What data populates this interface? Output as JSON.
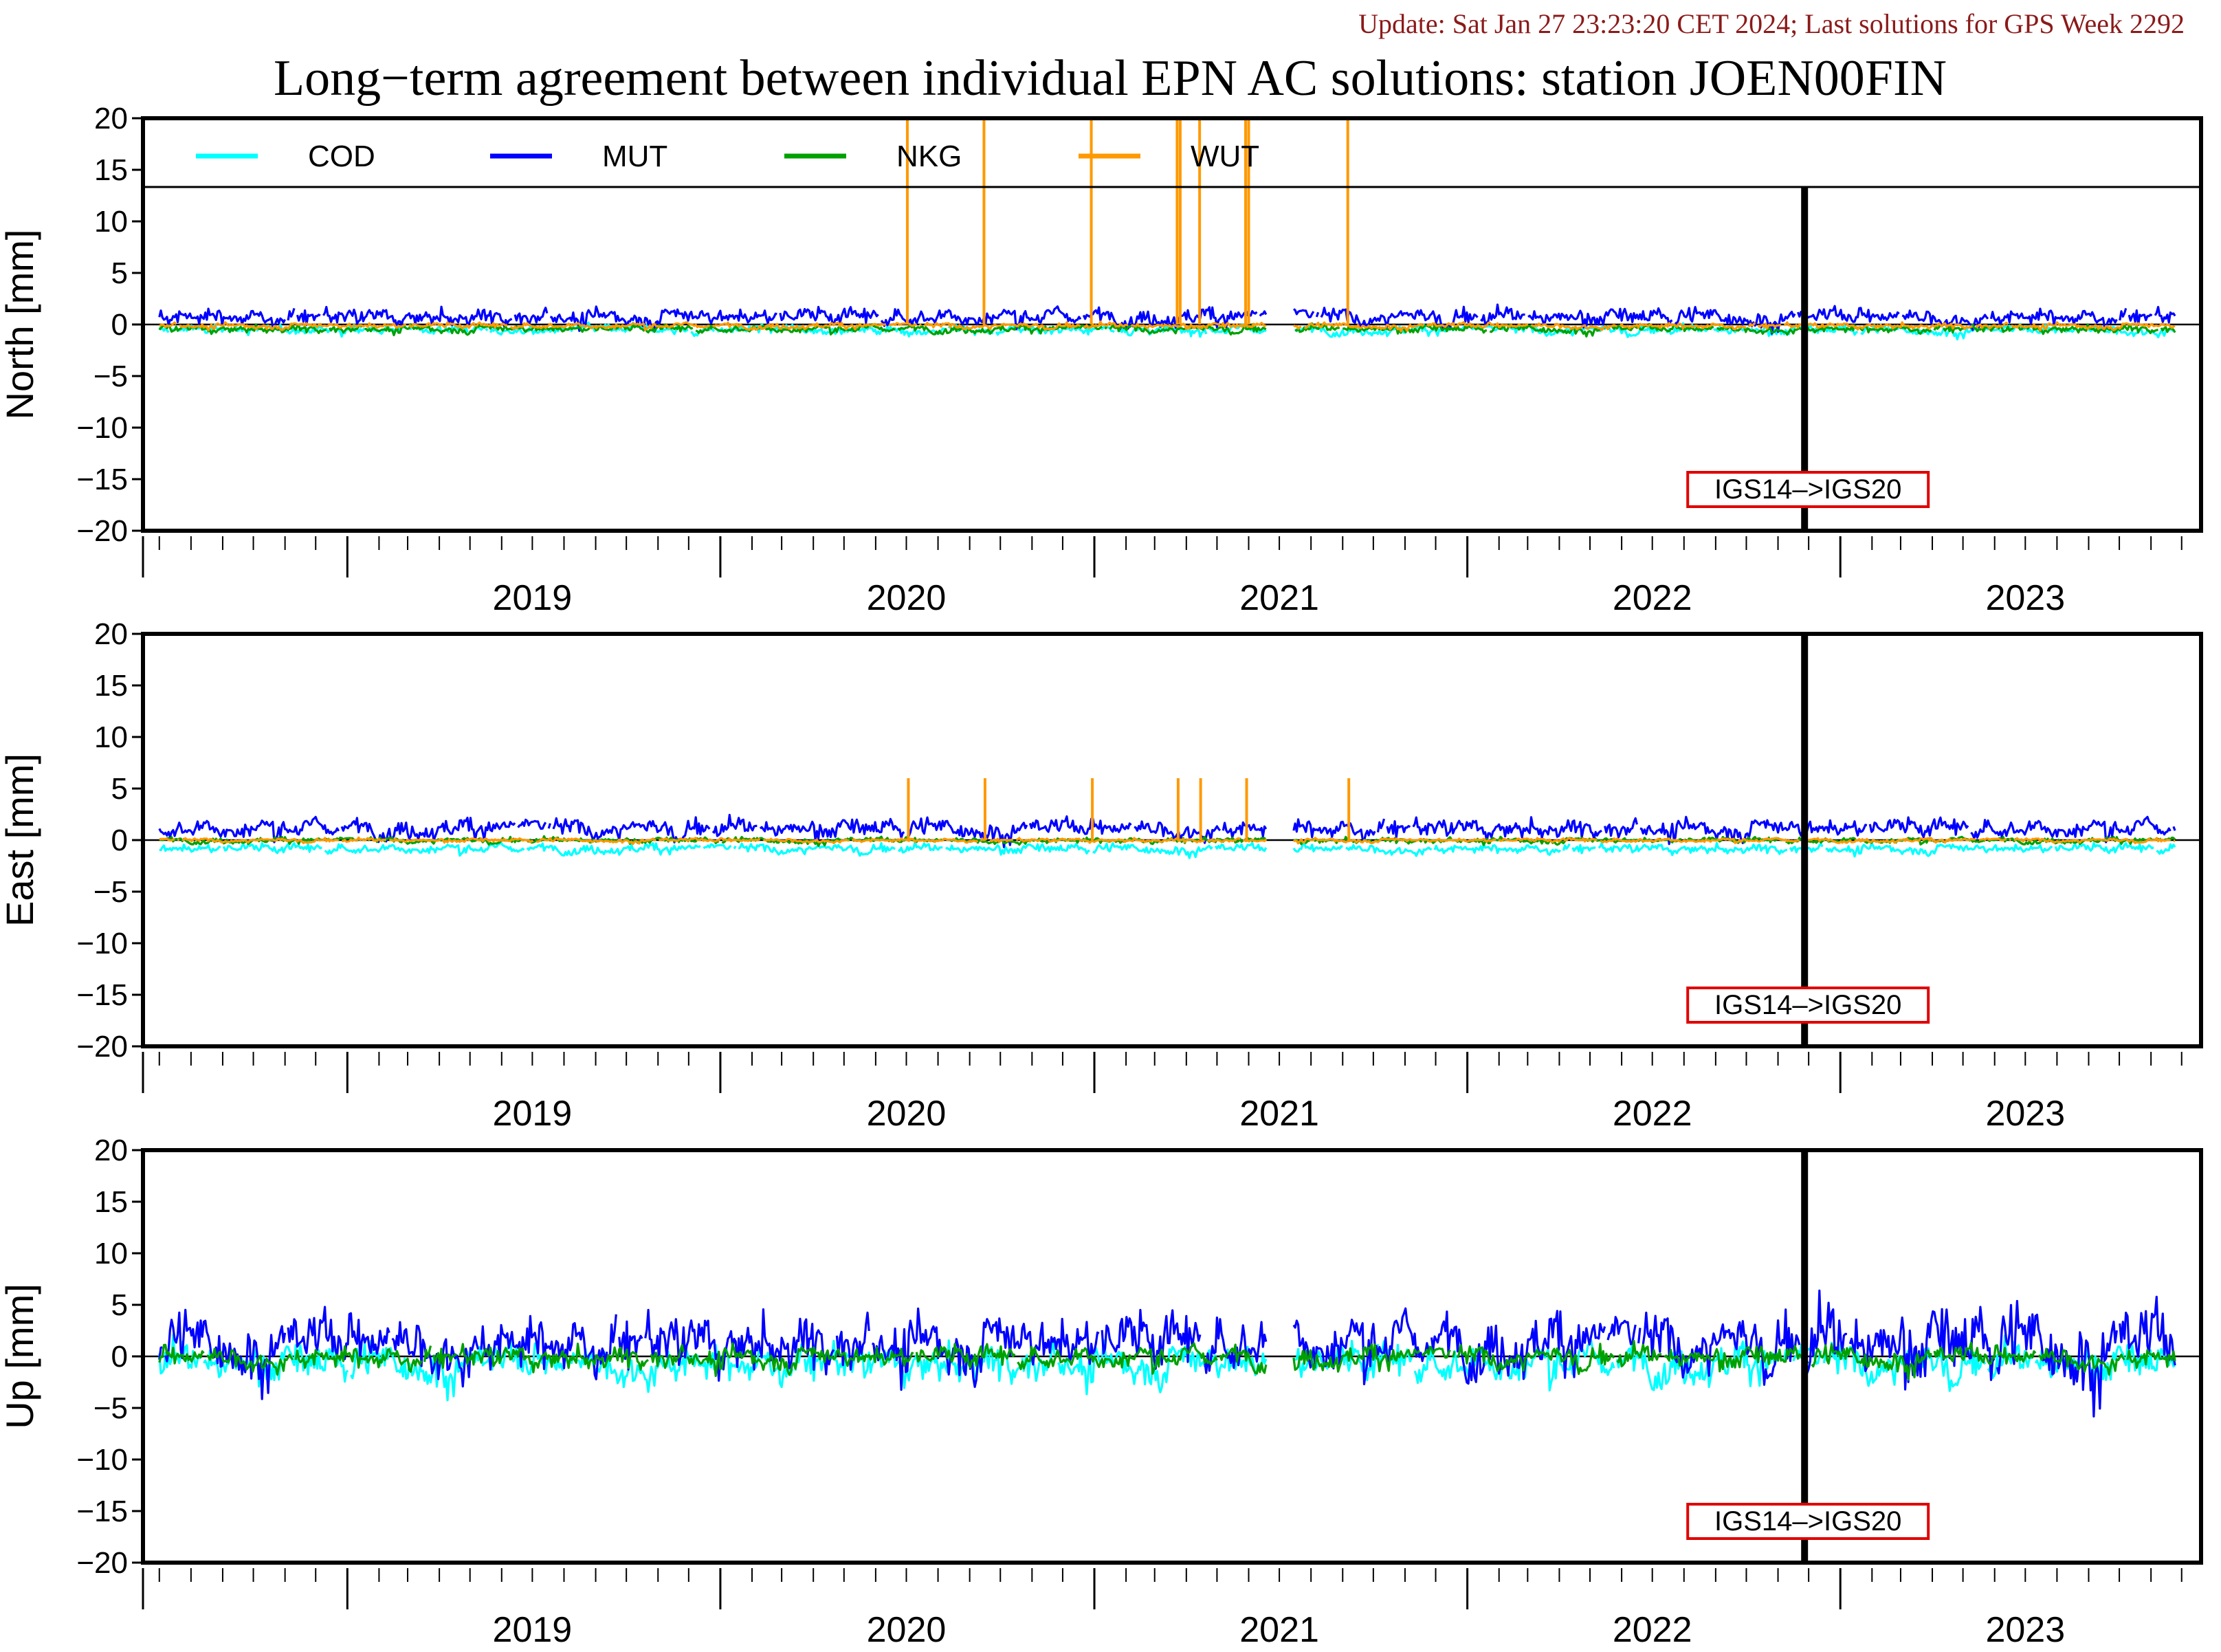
{
  "header": {
    "update_text": "Update: Sat Jan 27 23:23:20 CET 2024; Last solutions for GPS Week 2292",
    "update_color": "#8b1a1a"
  },
  "chart_data": {
    "type": "line",
    "title": "Long−term agreement between individual EPN AC solutions: station JOEN00FIN",
    "x_range": [
      "2018-06-15",
      "2023-12-20"
    ],
    "year_labels": [
      "2019",
      "2020",
      "2021",
      "2022",
      "2023"
    ],
    "ylim": [
      -20,
      20
    ],
    "yticks": [
      "20",
      "15",
      "10",
      "5",
      "0",
      "−5",
      "−10",
      "−15",
      "−20"
    ],
    "legend": {
      "placement": "top",
      "entries": [
        {
          "name": "COD",
          "color": "#00ffff"
        },
        {
          "name": "MUT",
          "color": "#0000ff"
        },
        {
          "name": "NKG",
          "color": "#00a000"
        },
        {
          "name": "WUT",
          "color": "#ff9900"
        }
      ]
    },
    "frame_change": {
      "date": "2022-11-27",
      "label": "IGS14–>IGS20",
      "label_color": "#e00000"
    },
    "data_gap": [
      "2021-06-19",
      "2021-07-15"
    ],
    "panels": [
      {
        "ylabel": "North [mm]",
        "series": [
          {
            "name": "COD",
            "mean": -0.5,
            "amplitude": 0.5
          },
          {
            "name": "MUT",
            "mean": 0.8,
            "amplitude": 0.9
          },
          {
            "name": "NKG",
            "mean": -0.4,
            "amplitude": 0.4
          },
          {
            "name": "WUT",
            "mean": -0.1,
            "amplitude": 0.3,
            "spikes": [
              "2020-07-02",
              "2020-09-15",
              "2020-12-29",
              "2021-03-23",
              "2021-03-26",
              "2021-04-14",
              "2021-05-29",
              "2021-06-01",
              "2021-09-06"
            ]
          }
        ]
      },
      {
        "ylabel": "East [mm]",
        "series": [
          {
            "name": "COD",
            "mean": -0.8,
            "amplitude": 0.5
          },
          {
            "name": "MUT",
            "mean": 1.2,
            "amplitude": 1.0
          },
          {
            "name": "NKG",
            "mean": 0.0,
            "amplitude": 0.3
          },
          {
            "name": "WUT",
            "mean": 0.0,
            "amplitude": 0.2,
            "spikes": [
              "2020-07-03",
              "2020-09-16",
              "2020-12-30",
              "2021-03-24",
              "2021-04-15",
              "2021-05-30",
              "2021-09-07"
            ]
          }
        ]
      },
      {
        "ylabel": "Up [mm]",
        "series": [
          {
            "name": "COD",
            "mean": -0.5,
            "amplitude": 2.0
          },
          {
            "name": "MUT",
            "mean": 1.5,
            "amplitude": 3.0
          },
          {
            "name": "NKG",
            "mean": 0.0,
            "amplitude": 1.2
          }
        ]
      }
    ]
  }
}
